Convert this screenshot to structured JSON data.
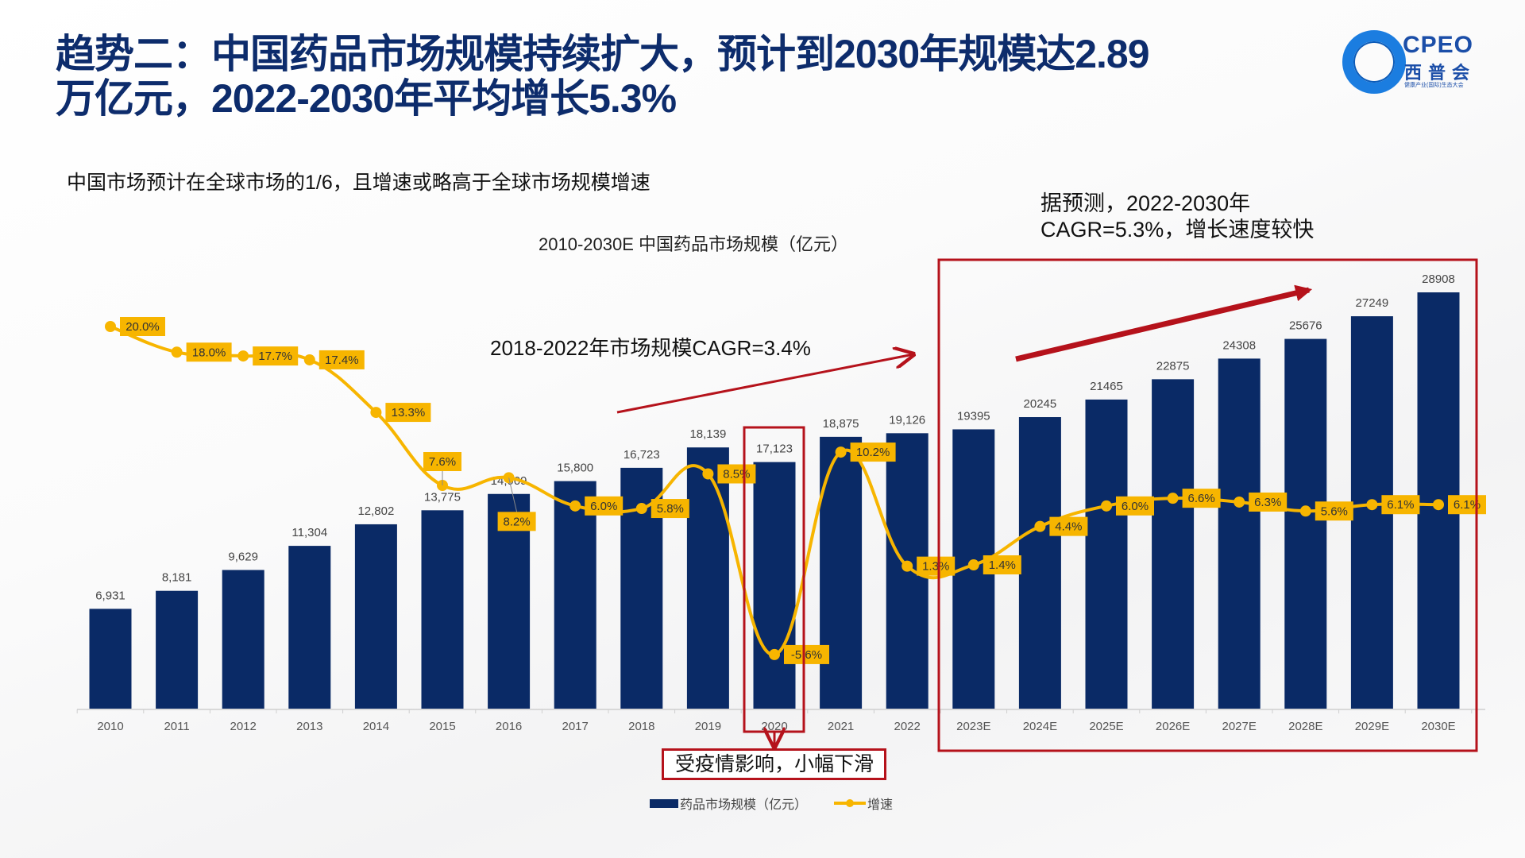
{
  "title": {
    "line1": "趋势二：中国药品市场规模持续扩大，预计到2030年规模达2.89",
    "line2": "万亿元，2022-2030年平均增长5.3%"
  },
  "logo": {
    "name": "CPEO",
    "cn": "西普会",
    "sub": "健康产业(国际)生态大会"
  },
  "subtitle": "中国市场预计在全球市场的1/6，且增速或略高于全球市场规模增速",
  "annotations": {
    "forecast_note_line1": "据预测，2022-2030年",
    "forecast_note_line2": "CAGR=5.3%，增长速度较快",
    "cagr_2018_2022": "2018-2022年市场规模CAGR=3.4%",
    "covid_callout": "受疫情影响，小幅下滑"
  },
  "colors": {
    "title": "#0d2c6c",
    "bar": "#0a2a66",
    "line": "#f7b500",
    "highlight": "#b5121b"
  },
  "chart_data": {
    "type": "bar+line",
    "title": "2010-2030E 中国药品市场规模（亿元）",
    "categories": [
      "2010",
      "2011",
      "2012",
      "2013",
      "2014",
      "2015",
      "2016",
      "2017",
      "2018",
      "2019",
      "2020",
      "2021",
      "2022",
      "2023E",
      "2024E",
      "2025E",
      "2026E",
      "2027E",
      "2028E",
      "2029E",
      "2030E"
    ],
    "series": [
      {
        "name": "药品市场规模（亿元）",
        "type": "bar",
        "values": [
          6931,
          8181,
          9629,
          11304,
          12802,
          13775,
          14909,
          15800,
          16723,
          18139,
          17123,
          18875,
          19126,
          19395,
          20245,
          21465,
          22875,
          24308,
          25676,
          27249,
          28908
        ],
        "labels": [
          "6,931",
          "8,181",
          "9,629",
          "11,304",
          "12,802",
          "13,775",
          "14,909",
          "15,800",
          "16,723",
          "18,139",
          "17,123",
          "18,875",
          "19,126",
          "19395",
          "20245",
          "21465",
          "22875",
          "24308",
          "25676",
          "27249",
          "28908"
        ]
      },
      {
        "name": "增速",
        "type": "line",
        "unit": "%",
        "values": [
          20.0,
          18.0,
          17.7,
          17.4,
          13.3,
          7.6,
          8.2,
          6.0,
          5.8,
          8.5,
          -5.6,
          10.2,
          1.3,
          1.4,
          4.4,
          6.0,
          6.6,
          6.3,
          5.6,
          6.1,
          6.1
        ],
        "labels": [
          "20.0%",
          "18.0%",
          "17.7%",
          "17.4%",
          "13.3%",
          "7.6%",
          "8.2%",
          "6.0%",
          "5.8%",
          "8.5%",
          "-5.6%",
          "10.2%",
          "1.3%",
          "1.4%",
          "4.4%",
          "6.0%",
          "6.6%",
          "6.3%",
          "5.6%",
          "6.1%",
          "6.1%"
        ]
      }
    ],
    "ylim_bar": [
      0,
      30000
    ],
    "ylim_line": [
      -6,
      21
    ],
    "legend": [
      "药品市场规模（亿元）",
      "增速"
    ],
    "legend_position": "bottom",
    "grid": false,
    "highlighted_categories": [
      "2020"
    ],
    "highlighted_range": [
      "2023E",
      "2030E"
    ]
  }
}
